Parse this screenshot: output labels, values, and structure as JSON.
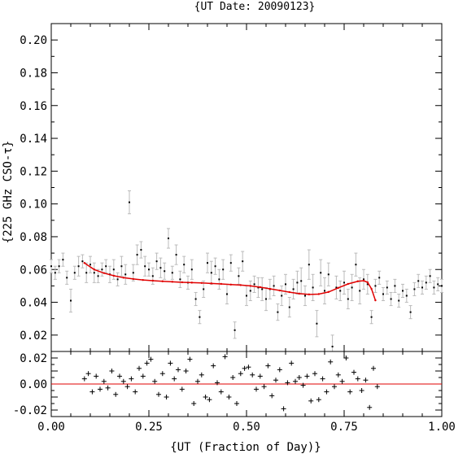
{
  "chart_data": [
    {
      "type": "scatter",
      "title": "{UT Date: 20090123}",
      "xlabel": "",
      "ylabel": "{225 GHz CSO-τ}",
      "xlim": [
        0.0,
        1.0
      ],
      "ylim": [
        0.01,
        0.21
      ],
      "y_ticks": [
        "0.02",
        "0.04",
        "0.06",
        "0.08",
        "0.10",
        "0.12",
        "0.14",
        "0.16",
        "0.18",
        "0.20"
      ],
      "grid": false,
      "colors": {
        "points": "#000000",
        "error_bars": "#bbbbbb",
        "fit": "#e00000"
      },
      "series": [
        {
          "x": [
            0.0,
            0.01,
            0.02,
            0.03,
            0.04,
            0.05,
            0.06,
            0.07,
            0.08,
            0.09,
            0.1,
            0.11,
            0.12,
            0.13,
            0.14,
            0.15,
            0.16,
            0.17,
            0.18,
            0.19,
            0.2,
            0.21,
            0.22,
            0.23,
            0.24,
            0.25,
            0.26,
            0.27,
            0.28,
            0.29,
            0.3,
            0.31,
            0.32,
            0.33,
            0.34,
            0.35,
            0.36,
            0.37,
            0.38,
            0.39,
            0.4,
            0.41,
            0.42,
            0.43,
            0.44,
            0.45,
            0.46,
            0.47,
            0.48,
            0.49,
            0.5,
            0.51,
            0.52,
            0.53,
            0.54,
            0.55,
            0.56,
            0.57,
            0.58,
            0.59,
            0.6,
            0.61,
            0.62,
            0.63,
            0.64,
            0.65,
            0.66,
            0.67,
            0.68,
            0.69,
            0.7,
            0.71,
            0.72,
            0.73,
            0.74,
            0.75,
            0.76,
            0.77,
            0.78,
            0.79,
            0.8,
            0.81,
            0.82,
            0.83,
            0.84,
            0.85,
            0.86,
            0.87,
            0.88,
            0.89,
            0.9,
            0.91,
            0.92,
            0.93,
            0.94,
            0.95,
            0.96,
            0.97,
            0.98,
            0.99,
            1.0
          ],
          "y": [
            0.062,
            0.058,
            0.062,
            0.066,
            0.055,
            0.041,
            0.058,
            0.062,
            0.065,
            0.058,
            0.063,
            0.058,
            0.056,
            0.06,
            0.062,
            0.057,
            0.06,
            0.054,
            0.062,
            0.057,
            0.101,
            0.058,
            0.069,
            0.072,
            0.062,
            0.06,
            0.056,
            0.065,
            0.061,
            0.059,
            0.079,
            0.058,
            0.069,
            0.054,
            0.063,
            0.052,
            0.06,
            0.042,
            0.031,
            0.048,
            0.064,
            0.058,
            0.062,
            0.054,
            0.06,
            0.045,
            0.064,
            0.023,
            0.056,
            0.065,
            0.044,
            0.047,
            0.051,
            0.049,
            0.048,
            0.042,
            0.048,
            0.05,
            0.034,
            0.044,
            0.051,
            0.037,
            0.048,
            0.052,
            0.053,
            0.044,
            0.063,
            0.049,
            0.027,
            0.058,
            0.047,
            0.057,
            0.013,
            0.049,
            0.047,
            0.052,
            0.042,
            0.049,
            0.063,
            0.047,
            0.054,
            0.051,
            0.031,
            0.05,
            0.055,
            0.045,
            0.049,
            0.042,
            0.05,
            0.041,
            0.047,
            0.044,
            0.034,
            0.048,
            0.053,
            0.049,
            0.052,
            0.056,
            0.049,
            0.051,
            0.05
          ],
          "yerr": [
            0.004,
            0.004,
            0.004,
            0.004,
            0.004,
            0.007,
            0.004,
            0.006,
            0.004,
            0.006,
            0.005,
            0.006,
            0.004,
            0.004,
            0.004,
            0.005,
            0.006,
            0.004,
            0.006,
            0.006,
            0.007,
            0.005,
            0.006,
            0.005,
            0.006,
            0.004,
            0.005,
            0.005,
            0.006,
            0.005,
            0.006,
            0.004,
            0.006,
            0.005,
            0.005,
            0.004,
            0.006,
            0.004,
            0.004,
            0.005,
            0.006,
            0.007,
            0.005,
            0.006,
            0.006,
            0.006,
            0.005,
            0.005,
            0.005,
            0.006,
            0.006,
            0.006,
            0.005,
            0.006,
            0.007,
            0.007,
            0.006,
            0.006,
            0.005,
            0.006,
            0.006,
            0.006,
            0.006,
            0.007,
            0.008,
            0.006,
            0.009,
            0.008,
            0.008,
            0.008,
            0.008,
            0.007,
            0.007,
            0.007,
            0.006,
            0.007,
            0.006,
            0.008,
            0.007,
            0.008,
            0.006,
            0.006,
            0.004,
            0.004,
            0.004,
            0.004,
            0.004,
            0.004,
            0.004,
            0.004,
            0.004,
            0.004,
            0.004,
            0.004,
            0.004,
            0.004,
            0.004,
            0.004,
            0.004,
            0.004,
            0.004
          ]
        },
        {
          "x": [
            0.085,
            0.11,
            0.135,
            0.16,
            0.185,
            0.21,
            0.235,
            0.26,
            0.285,
            0.31,
            0.335,
            0.36,
            0.385,
            0.41,
            0.435,
            0.46,
            0.485,
            0.51,
            0.535,
            0.56,
            0.585,
            0.61,
            0.635,
            0.66,
            0.685,
            0.71,
            0.735,
            0.76,
            0.785,
            0.8,
            0.81,
            0.82,
            0.83
          ],
          "y": [
            0.064,
            0.06,
            0.0578,
            0.0562,
            0.055,
            0.0542,
            0.0536,
            0.0532,
            0.0528,
            0.0525,
            0.0522,
            0.052,
            0.0518,
            0.0515,
            0.0512,
            0.0508,
            0.0505,
            0.05,
            0.0492,
            0.0482,
            0.0472,
            0.0462,
            0.0453,
            0.0448,
            0.045,
            0.0463,
            0.0488,
            0.0512,
            0.0528,
            0.0532,
            0.0522,
            0.0482,
            0.0412
          ]
        }
      ]
    },
    {
      "type": "scatter",
      "title": "",
      "xlabel": "{UT (Fraction of Day)}",
      "ylabel": "",
      "xlim": [
        0.0,
        1.0
      ],
      "ylim": [
        -0.025,
        0.025
      ],
      "x_ticks": [
        "0.00",
        "0.25",
        "0.50",
        "0.75",
        "1.00"
      ],
      "y_ticks": [
        "0.02",
        "0.00",
        "-0.02"
      ],
      "grid": false,
      "colors": {
        "points": "#000000",
        "zero_line": "#e00000"
      },
      "series": [
        {
          "x": [
            0.085,
            0.095,
            0.105,
            0.115,
            0.125,
            0.135,
            0.145,
            0.155,
            0.165,
            0.175,
            0.185,
            0.195,
            0.205,
            0.215,
            0.225,
            0.235,
            0.245,
            0.255,
            0.265,
            0.275,
            0.285,
            0.295,
            0.305,
            0.315,
            0.325,
            0.335,
            0.345,
            0.355,
            0.365,
            0.375,
            0.385,
            0.395,
            0.405,
            0.415,
            0.425,
            0.435,
            0.445,
            0.455,
            0.465,
            0.475,
            0.485,
            0.495,
            0.505,
            0.515,
            0.525,
            0.535,
            0.545,
            0.555,
            0.565,
            0.575,
            0.585,
            0.595,
            0.605,
            0.615,
            0.625,
            0.635,
            0.645,
            0.655,
            0.665,
            0.675,
            0.685,
            0.695,
            0.705,
            0.715,
            0.725,
            0.735,
            0.745,
            0.755,
            0.765,
            0.775,
            0.785,
            0.795,
            0.805,
            0.815,
            0.825,
            0.835
          ],
          "y": [
            0.004,
            0.008,
            -0.006,
            0.006,
            -0.004,
            0.002,
            -0.003,
            0.01,
            -0.008,
            0.006,
            0.002,
            -0.002,
            0.004,
            -0.006,
            0.012,
            0.006,
            0.016,
            0.019,
            0.002,
            -0.008,
            0.008,
            -0.01,
            0.016,
            0.004,
            0.011,
            -0.004,
            0.01,
            0.019,
            -0.015,
            0.002,
            0.007,
            -0.01,
            -0.012,
            0.014,
            0.001,
            -0.006,
            0.021,
            -0.01,
            0.005,
            -0.015,
            0.008,
            0.012,
            0.013,
            0.007,
            -0.004,
            0.006,
            -0.002,
            0.014,
            -0.009,
            0.003,
            0.011,
            -0.019,
            0.001,
            0.016,
            0.002,
            0.005,
            -0.001,
            0.006,
            -0.013,
            0.008,
            -0.012,
            0.004,
            -0.006,
            0.017,
            -0.002,
            0.007,
            0.002,
            0.02,
            -0.006,
            0.009,
            0.004,
            -0.005,
            0.003,
            -0.018,
            0.012,
            -0.002
          ],
          "line_y": 0.0
        }
      ]
    }
  ]
}
